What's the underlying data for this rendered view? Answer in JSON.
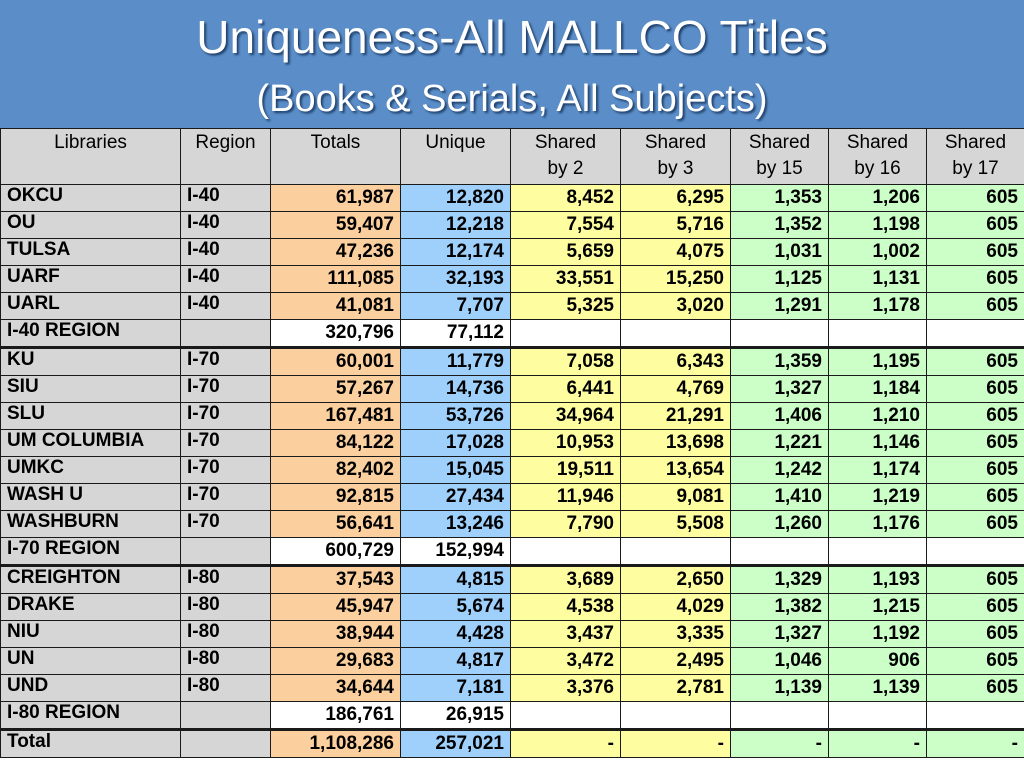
{
  "title": {
    "line1": "Uniqueness-All MALLCO Titles",
    "line2": "(Books & Serials, All Subjects)"
  },
  "colors": {
    "background": "#5b8ec8",
    "header_cell": "#d6d6d6",
    "totals": "#fbcf9e",
    "unique": "#9fd0fb",
    "shared_2_3": "#fefea0",
    "shared_15_17": "#ccfec8"
  },
  "chart_data": {
    "type": "table",
    "title": "Uniqueness-All MALLCO Titles",
    "subtitle": "(Books & Serials, All Subjects)",
    "columns": [
      "Libraries",
      "Region",
      "Totals",
      "Unique",
      "Shared by 2",
      "Shared by 3",
      "Shared by 15",
      "Shared by 16",
      "Shared by 17"
    ],
    "header_lines": [
      [
        "Libraries",
        ""
      ],
      [
        "Region",
        ""
      ],
      [
        "Totals",
        ""
      ],
      [
        "Unique",
        ""
      ],
      [
        "Shared",
        "by 2"
      ],
      [
        "Shared",
        "by 3"
      ],
      [
        "Shared",
        "by 15"
      ],
      [
        "Shared",
        "by 16"
      ],
      [
        "Shared",
        "by 17"
      ]
    ],
    "rows": [
      {
        "kind": "library",
        "cells": [
          "OKCU",
          "I-40",
          "61,987",
          "12,820",
          "8,452",
          "6,295",
          "1,353",
          "1,206",
          "605"
        ]
      },
      {
        "kind": "library",
        "cells": [
          "OU",
          "I-40",
          "59,407",
          "12,218",
          "7,554",
          "5,716",
          "1,352",
          "1,198",
          "605"
        ]
      },
      {
        "kind": "library",
        "cells": [
          "TULSA",
          "I-40",
          "47,236",
          "12,174",
          "5,659",
          "4,075",
          "1,031",
          "1,002",
          "605"
        ]
      },
      {
        "kind": "library",
        "cells": [
          "UARF",
          "I-40",
          "111,085",
          "32,193",
          "33,551",
          "15,250",
          "1,125",
          "1,131",
          "605"
        ]
      },
      {
        "kind": "library",
        "cells": [
          "UARL",
          "I-40",
          "41,081",
          "7,707",
          "5,325",
          "3,020",
          "1,291",
          "1,178",
          "605"
        ]
      },
      {
        "kind": "region",
        "cells": [
          "I-40 REGION",
          "",
          "320,796",
          "77,112",
          "",
          "",
          "",
          "",
          ""
        ]
      },
      {
        "kind": "library",
        "group_start": true,
        "cells": [
          "KU",
          "I-70",
          "60,001",
          "11,779",
          "7,058",
          "6,343",
          "1,359",
          "1,195",
          "605"
        ]
      },
      {
        "kind": "library",
        "cells": [
          "SIU",
          "I-70",
          "57,267",
          "14,736",
          "6,441",
          "4,769",
          "1,327",
          "1,184",
          "605"
        ]
      },
      {
        "kind": "library",
        "cells": [
          "SLU",
          "I-70",
          "167,481",
          "53,726",
          "34,964",
          "21,291",
          "1,406",
          "1,210",
          "605"
        ]
      },
      {
        "kind": "library",
        "cells": [
          "UM COLUMBIA",
          "I-70",
          "84,122",
          "17,028",
          "10,953",
          "13,698",
          "1,221",
          "1,146",
          "605"
        ]
      },
      {
        "kind": "library",
        "cells": [
          "UMKC",
          "I-70",
          "82,402",
          "15,045",
          "19,511",
          "13,654",
          "1,242",
          "1,174",
          "605"
        ]
      },
      {
        "kind": "library",
        "cells": [
          "WASH U",
          "I-70",
          "92,815",
          "27,434",
          "11,946",
          "9,081",
          "1,410",
          "1,219",
          "605"
        ]
      },
      {
        "kind": "library",
        "cells": [
          "WASHBURN",
          "I-70",
          "56,641",
          "13,246",
          "7,790",
          "5,508",
          "1,260",
          "1,176",
          "605"
        ]
      },
      {
        "kind": "region",
        "cells": [
          "I-70 REGION",
          "",
          "600,729",
          "152,994",
          "",
          "",
          "",
          "",
          ""
        ]
      },
      {
        "kind": "library",
        "group_start": true,
        "cells": [
          "CREIGHTON",
          "I-80",
          "37,543",
          "4,815",
          "3,689",
          "2,650",
          "1,329",
          "1,193",
          "605"
        ]
      },
      {
        "kind": "library",
        "cells": [
          "DRAKE",
          "I-80",
          "45,947",
          "5,674",
          "4,538",
          "4,029",
          "1,382",
          "1,215",
          "605"
        ]
      },
      {
        "kind": "library",
        "cells": [
          "NIU",
          "I-80",
          "38,944",
          "4,428",
          "3,437",
          "3,335",
          "1,327",
          "1,192",
          "605"
        ]
      },
      {
        "kind": "library",
        "cells": [
          "UN",
          "I-80",
          "29,683",
          "4,817",
          "3,472",
          "2,495",
          "1,046",
          "906",
          "605"
        ]
      },
      {
        "kind": "library",
        "cells": [
          "UND",
          "I-80",
          "34,644",
          "7,181",
          "3,376",
          "2,781",
          "1,139",
          "1,139",
          "605"
        ]
      },
      {
        "kind": "region",
        "cells": [
          "I-80 REGION",
          "",
          "186,761",
          "26,915",
          "",
          "",
          "",
          "",
          ""
        ]
      },
      {
        "kind": "total",
        "group_start": true,
        "cells": [
          "Total",
          "",
          "1,108,286",
          "257,021",
          "-",
          "-",
          "-",
          "-",
          "-"
        ]
      }
    ]
  }
}
